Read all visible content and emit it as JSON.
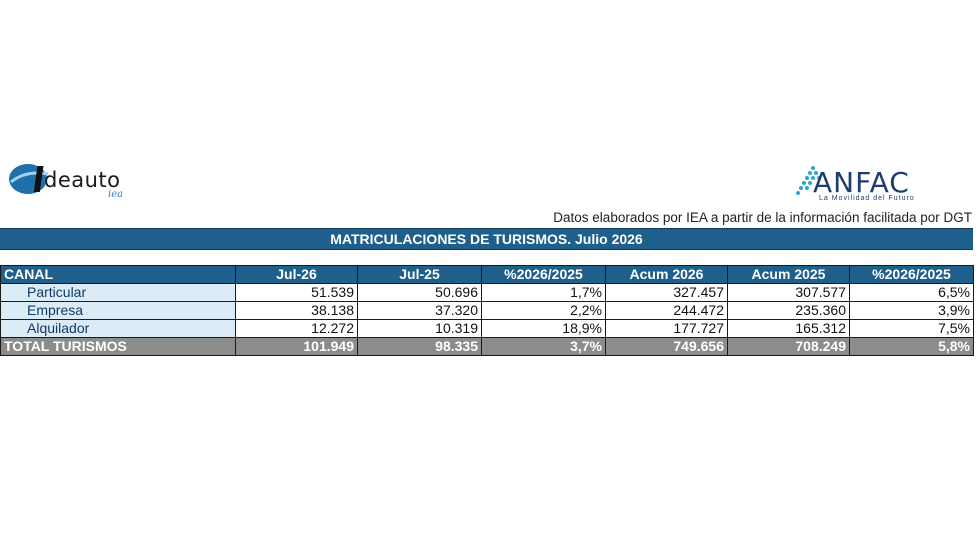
{
  "logos": {
    "left": {
      "word": "deauto",
      "sub": "iea"
    },
    "right": {
      "word": "ANFAC",
      "sub": "La Movilidad del Futuro"
    }
  },
  "source_note": "Datos elaborados por IEA a partir de la información facilitada por DGT",
  "title": "MATRICULACIONES DE TURISMOS. Julio 2026",
  "table": {
    "headers": [
      "CANAL",
      "Jul-26",
      "Jul-25",
      "%2026/2025",
      "Acum 2026",
      "Acum 2025",
      "%2026/2025"
    ],
    "rows": [
      [
        "Particular",
        "51.539",
        "50.696",
        "1,7%",
        "327.457",
        "307.577",
        "6,5%"
      ],
      [
        "Empresa",
        "38.138",
        "37.320",
        "2,2%",
        "244.472",
        "235.360",
        "3,9%"
      ],
      [
        "Alquilador",
        "12.272",
        "10.319",
        "18,9%",
        "177.727",
        "165.312",
        "7,5%"
      ]
    ],
    "total": [
      "TOTAL TURISMOS",
      "101.949",
      "98.335",
      "3,7%",
      "749.656",
      "708.249",
      "5,8%"
    ]
  },
  "colors": {
    "header_blue": "#1f5f8b",
    "label_bg": "#dcecf7",
    "total_gray": "#8c8c8c"
  }
}
